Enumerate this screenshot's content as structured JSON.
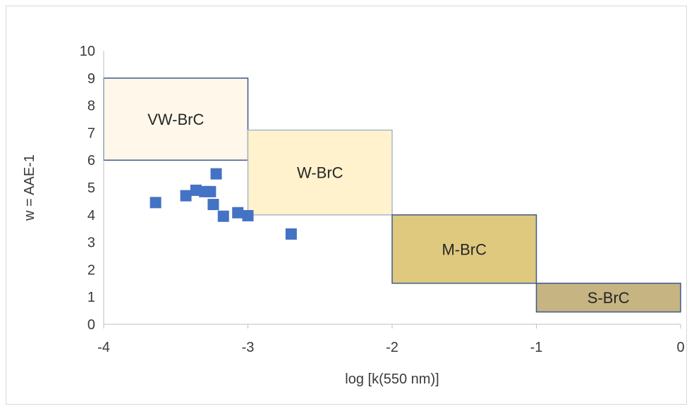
{
  "chart_data": {
    "type": "scatter",
    "title": "",
    "xlabel": "log [k(550 nm)]",
    "ylabel": "w = AAE-1",
    "xlim": [
      -4,
      0
    ],
    "ylim": [
      0,
      10
    ],
    "x_ticks": [
      "-4",
      "-3",
      "-2",
      "-1",
      "0"
    ],
    "y_ticks": [
      "0",
      "1",
      "2",
      "3",
      "4",
      "5",
      "6",
      "7",
      "8",
      "9",
      "10"
    ],
    "grid": false,
    "legend": "none",
    "series": [
      {
        "marker": "square",
        "color": "#4472c4",
        "points": [
          {
            "x": -3.64,
            "y": 4.45
          },
          {
            "x": -3.43,
            "y": 4.7
          },
          {
            "x": -3.36,
            "y": 4.9
          },
          {
            "x": -3.3,
            "y": 4.85
          },
          {
            "x": -3.26,
            "y": 4.85
          },
          {
            "x": -3.24,
            "y": 4.38
          },
          {
            "x": -3.22,
            "y": 5.5
          },
          {
            "x": -3.17,
            "y": 3.95
          },
          {
            "x": -3.07,
            "y": 4.08
          },
          {
            "x": -3.0,
            "y": 3.97
          },
          {
            "x": -2.7,
            "y": 3.3
          }
        ]
      }
    ],
    "regions": [
      {
        "label": "VW-BrC",
        "x": [
          -4,
          -3
        ],
        "y": [
          6,
          9
        ],
        "fill": "#fff8ea",
        "stroke": "#3d5a8c"
      },
      {
        "label": "W-BrC",
        "x": [
          -3,
          -2
        ],
        "y": [
          4,
          7.1
        ],
        "fill": "#fff2cc",
        "stroke": "#a9b6c8"
      },
      {
        "label": "M-BrC",
        "x": [
          -2,
          -1
        ],
        "y": [
          1.5,
          4
        ],
        "fill": "#dfc97e",
        "stroke": "#3d5a8c"
      },
      {
        "label": "S-BrC",
        "x": [
          -1,
          0
        ],
        "y": [
          0.45,
          1.5
        ],
        "fill": "#c6b482",
        "stroke": "#3d5a8c"
      }
    ]
  }
}
